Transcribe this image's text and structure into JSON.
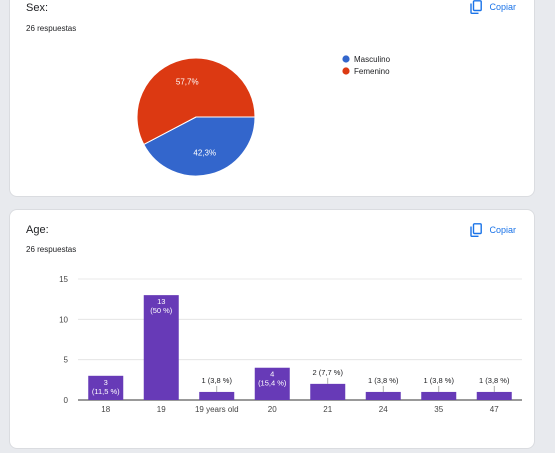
{
  "colors": {
    "accent": "#673ab7",
    "link": "#1a73e8",
    "masculino": "#3366cc",
    "femenino": "#dc3912",
    "bar": "#673ab7"
  },
  "sex": {
    "title": "Sex:",
    "responses": "26 respuestas",
    "copy_label": "Copiar",
    "legend": [
      "Masculino",
      "Femenino"
    ],
    "slice_labels": [
      "42,3%",
      "57,7%"
    ]
  },
  "age": {
    "title": "Age:",
    "responses": "26 respuestas",
    "copy_label": "Copiar",
    "y_ticks": [
      "0",
      "5",
      "10",
      "15"
    ]
  },
  "chart_data": [
    {
      "type": "pie",
      "labels": [
        "Masculino",
        "Femenino"
      ],
      "values": [
        42.3,
        57.7
      ],
      "value_labels": [
        "42,3%",
        "57,7%"
      ],
      "colors": [
        "#3366cc",
        "#dc3912"
      ],
      "legend": "right"
    },
    {
      "type": "bar",
      "categories": [
        "18",
        "19",
        "19 years old",
        "20",
        "21",
        "24",
        "35",
        "47"
      ],
      "values": [
        3,
        13,
        1,
        4,
        2,
        1,
        1,
        1
      ],
      "data_labels": [
        [
          "3",
          "(11,5 %)"
        ],
        [
          "13",
          "(50 %)"
        ],
        [
          "1 (3,8 %)"
        ],
        [
          "4",
          "(15,4 %)"
        ],
        [
          "2 (7,7 %)"
        ],
        [
          "1 (3,8 %)"
        ],
        [
          "1 (3,8 %)"
        ],
        [
          "1 (3,8 %)"
        ]
      ],
      "ylim": [
        0,
        15
      ],
      "y_ticks": [
        0,
        5,
        10,
        15
      ],
      "grid": true,
      "color": "#673ab7"
    }
  ]
}
